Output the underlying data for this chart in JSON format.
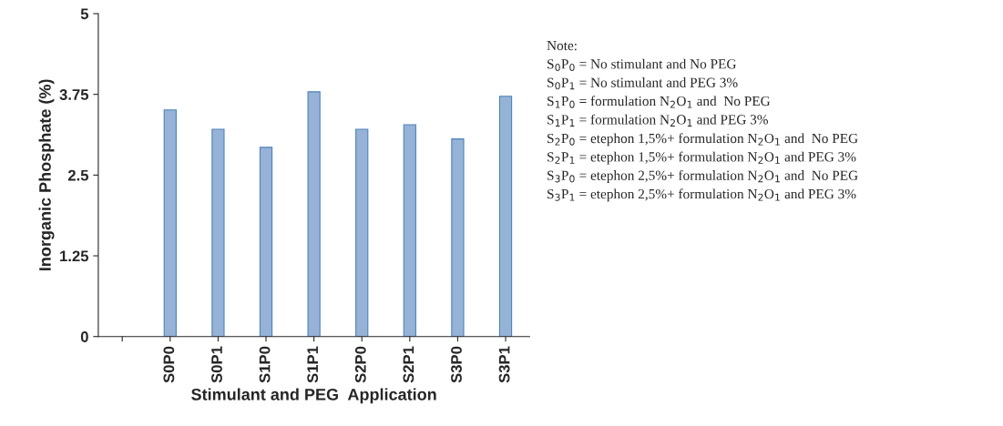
{
  "chart_data": {
    "type": "bar",
    "xlabel": "Stimulant and PEG  Application",
    "ylabel": "Inorganic Phosphate (%)",
    "categories": [
      null,
      "S0P0",
      "S0P1",
      "S1P0",
      "S1P1",
      "S2P0",
      "S2P1",
      "S3P0",
      "S3P1"
    ],
    "values": [
      null,
      3.51,
      3.21,
      2.93,
      3.79,
      3.21,
      3.28,
      3.06,
      3.72
    ],
    "color": "#95b3d7",
    "ylim": [
      0,
      5
    ],
    "yticks": [
      0,
      1.25,
      2.5,
      3.75,
      5
    ],
    "grid": false,
    "legend": false,
    "annotations": [
      "Note:",
      "S$_{0}$P$_{0}$ = No stimulant and No PEG",
      "S$_{0}$P$_{1}$ = No stimulant and PEG 3%",
      "S$_{1}$P$_{0}$ = formulation N$_{2}$O$_{1}$ and  No PEG",
      "S$_{1}$P$_{1}$ = formulation N$_{2}$O$_{1}$ and PEG 3%",
      "S$_{2}$P$_{0}$ = etephon 1,5%+ formulation N$_{2}$O$_{1}$ and  No PEG",
      "S$_{2}$P$_{1}$ = etephon 1,5%+ formulation N$_{2}$O$_{1}$ and PEG 3%",
      "S$_{3}$P$_{0}$ = etephon 2,5%+ formulation N$_{2}$O$_{1}$ and  No PEG",
      "S$_{3}$P$_{1}$ = etephon 2,5%+ formulation N$_{2}$O$_{1}$ and PEG 3%"
    ]
  }
}
